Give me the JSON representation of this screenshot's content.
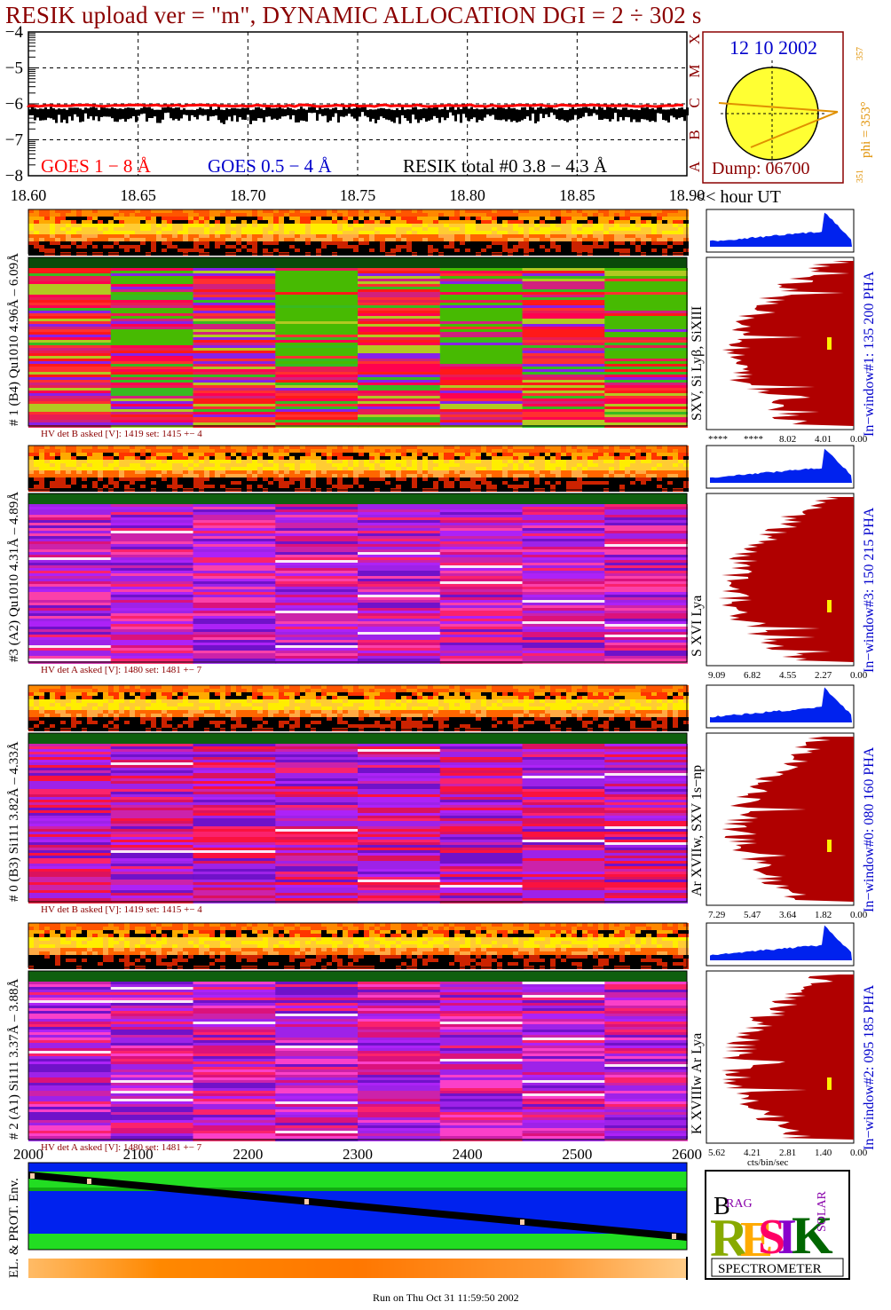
{
  "title": "RESIK upload ver = \"m\", DYNAMIC ALLOCATION  DGI =   2 ÷ 302 s",
  "lightcurve": {
    "yticks": [
      "−4",
      "−5",
      "−6",
      "−7",
      "−8"
    ],
    "xticks": [
      "18.60",
      "18.65",
      "18.70",
      "18.75",
      "18.80",
      "18.85",
      "18.90"
    ],
    "xunit": "<< hour UT",
    "legend_goes18": "GOES 1 − 8 Å",
    "legend_goes054": "GOES 0.5 − 4 Å",
    "legend_resik": "RESIK total #0  3.8 − 4.3 Å",
    "goes_classes": [
      "X",
      "M",
      "C",
      "B",
      "A"
    ],
    "colors": {
      "goes18": "#ff0000",
      "goes054": "#0000cc",
      "resik": "#000000"
    }
  },
  "sun": {
    "date": "12 10 2002",
    "dump": "Dump: 06700",
    "phi": "phi = 353°",
    "phi_sup": "357",
    "phi_low": "351"
  },
  "channels": [
    {
      "label": "# 1 (B4) Qu1010 4.96Å – 6.09Å",
      "lines": "SXV, Si Lyβ, SiXIII",
      "window": "In−window#1:  135 200 PHA",
      "hv": "HV det B asked [V]:  1419 set:  1415  +−    4",
      "axis": [
        "****",
        "****",
        "8.02",
        "4.01",
        "0.00"
      ],
      "peak": 0.92
    },
    {
      "label": "#3 (A2) Qu1010  4.31Å – 4.89Å",
      "lines": "S XVI Lya",
      "window": "In−window#3:  150 215 PHA",
      "hv": "HV det A asked [V]:  1480 set:  1481  +−    7",
      "axis": [
        "9.09",
        "6.82",
        "4.55",
        "2.27",
        "0.00"
      ],
      "peak": 0.95
    },
    {
      "label": "# 0 (B3) Si111  3.82Å – 4.33Å",
      "lines": "Ar XVIIw,  SXV  1s−np",
      "window": "In−window#0:  080 160 PHA",
      "hv": "HV det B asked [V]:  1419 set:  1415  +−    4",
      "axis": [
        "7.29",
        "5.47",
        "3.64",
        "1.82",
        "0.00"
      ],
      "peak": 0.9
    },
    {
      "label": "# 2 (A1) Si111  3.37Å – 3.88Å",
      "lines": "K XVIIIw  Ar Lya",
      "window": "In−window#2:  095 185 PHA",
      "hv": "HV det A asked [V]:  1480 set:  1481  +−    7",
      "axis": [
        "5.62",
        "4.21",
        "2.81",
        "1.40",
        "0.00"
      ],
      "peak": 0.93
    }
  ],
  "cts_label": "cts/bin/sec",
  "env": {
    "ylabel": "EL. & PROT. Env.",
    "xticks": [
      "2000",
      "2100",
      "2200",
      "2300",
      "2400",
      "2500",
      "2600"
    ]
  },
  "logo": {
    "text": "SPECTROMETER",
    "big": "RESIK"
  },
  "footer": "Run on Thu Oct 31 11:59:50 2002",
  "chart_data": {
    "type": "line",
    "title": "RESIK upload ver = \"m\", DYNAMIC ALLOCATION  DGI =   2 ÷ 302 s",
    "xlabel": "<< hour UT",
    "x_range": [
      18.6,
      18.9
    ],
    "ylim": [
      -8,
      -4
    ],
    "series": [
      {
        "name": "GOES 1 − 8 Å",
        "level": -6.05
      },
      {
        "name": "RESIK total #0  3.8 − 4.3 Å",
        "level": -6.2
      }
    ]
  }
}
